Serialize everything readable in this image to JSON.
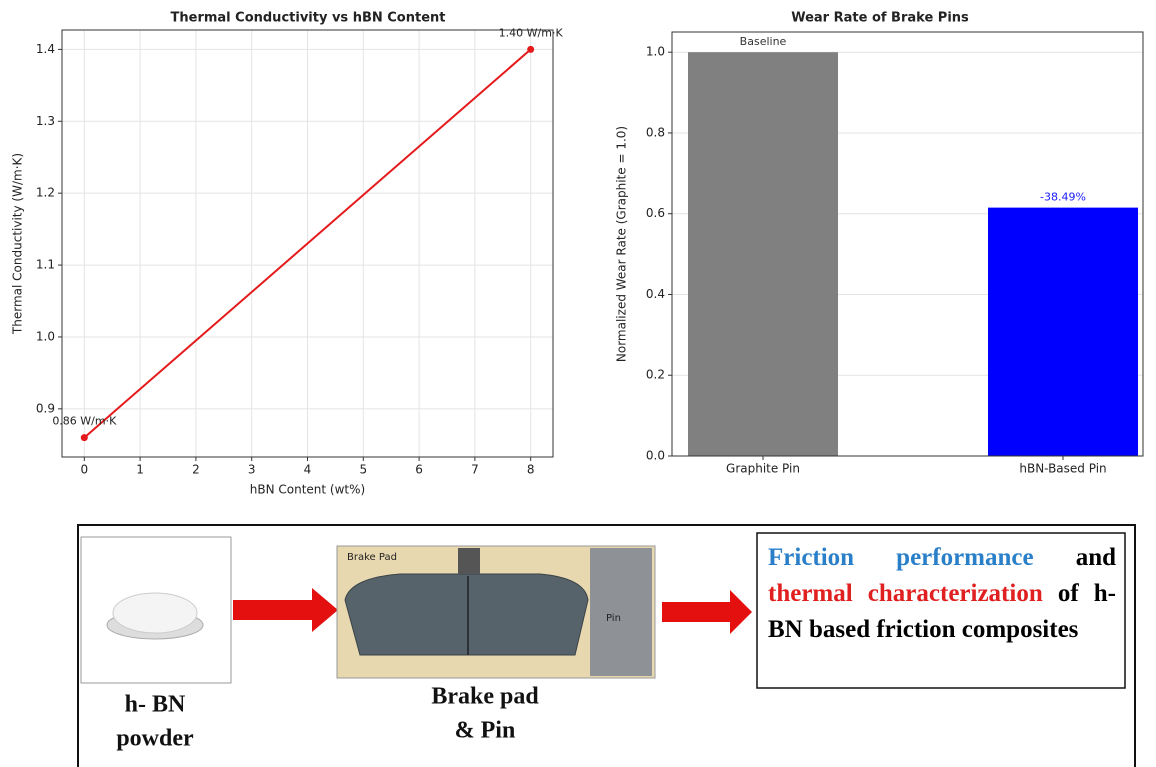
{
  "chart_data": [
    {
      "type": "line",
      "title": "Thermal Conductivity vs hBN Content",
      "x_label": "hBN Content (wt%)",
      "y_label": "Thermal Conductivity (W/m·K)",
      "x": [
        0,
        8
      ],
      "values": [
        0.86,
        1.4
      ],
      "value_labels": [
        "0.86 W/m·K",
        "1.40 W/m·K"
      ],
      "color": "#e41a1c",
      "xlim": [
        -0.4,
        8.4
      ],
      "xticks": [
        0,
        1,
        2,
        3,
        4,
        5,
        6,
        7,
        8
      ],
      "ylim": [
        0.833,
        1.427
      ],
      "yticks": [
        0.9,
        {
          "value": 1,
          "label": "1.0"
        },
        1.1,
        1.2,
        1.3,
        1.4
      ],
      "grid": true
    },
    {
      "type": "bar",
      "title": "Wear Rate of Brake Pins",
      "y_label": "Normalized Wear Rate (Graphite = 1.0)",
      "categories": [
        "Graphite Pin",
        "hBN-Based Pin"
      ],
      "values": [
        1,
        0.6151
      ],
      "colors": [
        "#808080",
        "#0000ff"
      ],
      "annotations": [
        {
          "text": "Baseline",
          "color": "#333333"
        },
        {
          "text": "-38.49%",
          "color": "#1a1aff"
        }
      ],
      "ylim": [
        0,
        1.05
      ],
      "yticks": [
        {
          "value": 0,
          "label": "0.0"
        },
        0.2,
        0.4,
        0.6,
        0.8,
        {
          "value": 1,
          "label": "1.0"
        }
      ],
      "grid": true
    }
  ],
  "diagram": {
    "powder_label": [
      "h- BN",
      "powder"
    ],
    "pad_photo_label": "Brake Pad",
    "pin_photo_label": "Pin",
    "pad_label": [
      "Brake pad",
      "& Pin"
    ],
    "summary": [
      {
        "text": "Friction performance",
        "color": "#2a7fc9"
      },
      {
        "text": "and",
        "color": "#000000"
      },
      {
        "text": "thermal characterization",
        "color": "#e02020"
      },
      {
        "text": "of h-BN based friction composites",
        "color": "#000000"
      }
    ]
  }
}
